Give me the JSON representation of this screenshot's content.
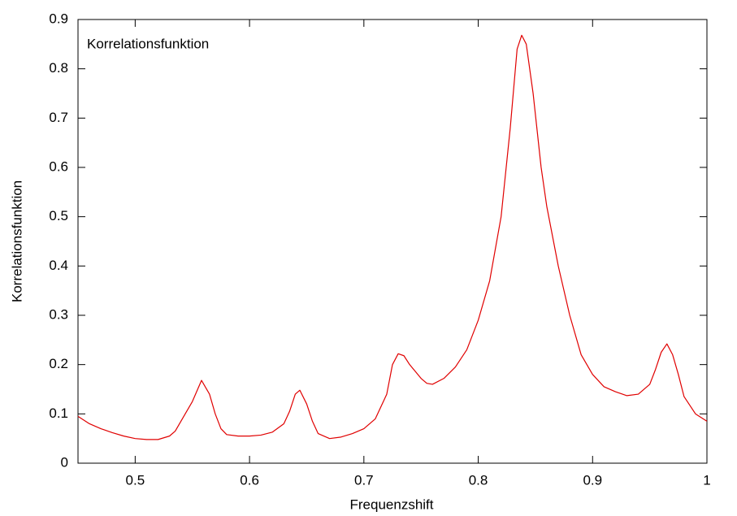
{
  "chart_data": {
    "type": "line",
    "xlabel": "Frequenzshift",
    "ylabel": "Korrelationsfunktion",
    "x": [
      0.45,
      0.46,
      0.47,
      0.48,
      0.49,
      0.5,
      0.51,
      0.52,
      0.53,
      0.535,
      0.54,
      0.55,
      0.558,
      0.565,
      0.57,
      0.575,
      0.58,
      0.59,
      0.6,
      0.61,
      0.62,
      0.63,
      0.635,
      0.64,
      0.644,
      0.65,
      0.655,
      0.66,
      0.67,
      0.68,
      0.69,
      0.7,
      0.71,
      0.72,
      0.725,
      0.73,
      0.735,
      0.74,
      0.75,
      0.755,
      0.76,
      0.77,
      0.78,
      0.79,
      0.8,
      0.81,
      0.82,
      0.828,
      0.834,
      0.838,
      0.842,
      0.848,
      0.855,
      0.86,
      0.87,
      0.88,
      0.89,
      0.9,
      0.91,
      0.92,
      0.93,
      0.94,
      0.95,
      0.955,
      0.96,
      0.965,
      0.97,
      0.975,
      0.98,
      0.99,
      1.0
    ],
    "series": [
      {
        "name": "Korrelationsfunktion",
        "color": "#e00000",
        "values": [
          0.095,
          0.08,
          0.07,
          0.062,
          0.055,
          0.05,
          0.048,
          0.048,
          0.055,
          0.065,
          0.085,
          0.125,
          0.168,
          0.14,
          0.1,
          0.07,
          0.058,
          0.055,
          0.055,
          0.057,
          0.063,
          0.08,
          0.105,
          0.14,
          0.148,
          0.12,
          0.085,
          0.06,
          0.05,
          0.053,
          0.06,
          0.07,
          0.09,
          0.14,
          0.2,
          0.222,
          0.218,
          0.2,
          0.172,
          0.162,
          0.16,
          0.172,
          0.195,
          0.23,
          0.29,
          0.37,
          0.5,
          0.68,
          0.84,
          0.868,
          0.85,
          0.75,
          0.6,
          0.52,
          0.4,
          0.3,
          0.22,
          0.18,
          0.155,
          0.145,
          0.137,
          0.14,
          0.16,
          0.19,
          0.225,
          0.242,
          0.22,
          0.18,
          0.135,
          0.1,
          0.085
        ]
      }
    ],
    "xlim": [
      0.45,
      1
    ],
    "xticks": [
      0.5,
      0.6,
      0.7,
      0.8,
      0.9,
      1
    ],
    "ylim": [
      0,
      0.9
    ],
    "yticks": [
      0,
      0.1,
      0.2,
      0.3,
      0.4,
      0.5,
      0.6,
      0.7,
      0.8,
      0.9
    ],
    "grid": false,
    "legend": "upper left"
  }
}
